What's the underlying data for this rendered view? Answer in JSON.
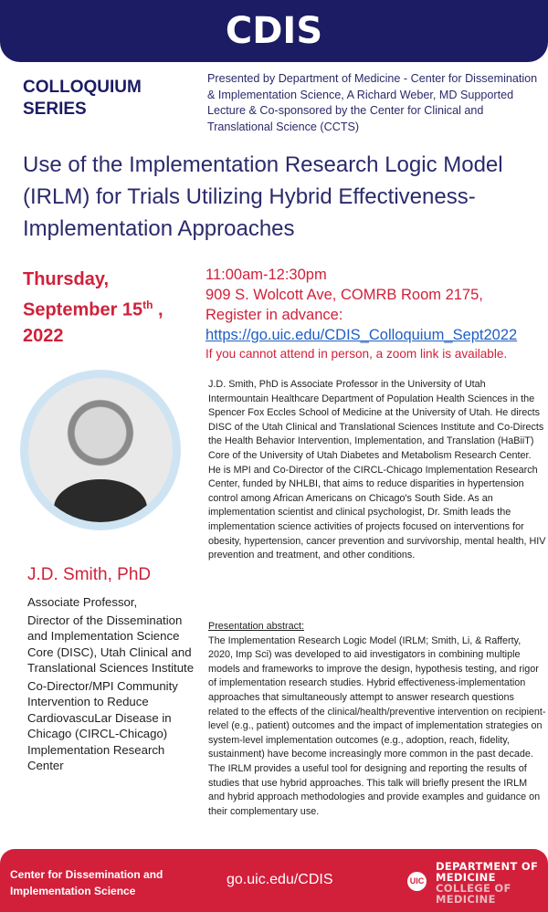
{
  "header": {
    "title": "CDIS"
  },
  "series": {
    "line1": "COLLOQUIUM",
    "line2": "SERIES"
  },
  "presented": "Presented by Department of Medicine - Center for Dissemination & Implementation Science, A Richard Weber, MD Supported Lecture & Co-sponsored by the Center for Clinical and Translational Science (CCTS)",
  "title": "Use of the Implementation Research Logic Model (IRLM) for Trials Utilizing Hybrid Effectiveness-Implementation Approaches",
  "date": {
    "line1": "Thursday,",
    "line2": "September 15",
    "sup": "th",
    "line2_end": " ,",
    "line3": "2022"
  },
  "info": {
    "time": "11:00am-12:30pm",
    "location": "909 S. Wolcott Ave, COMRB Room 2175,",
    "register": "Register in advance:",
    "link": "https://go.uic.edu/CDIS_Colloquium_Sept2022",
    "note": "If you cannot attend in person, a zoom link is available."
  },
  "speaker": {
    "name": "J.D. Smith, PhD",
    "roles": [
      "Associate Professor,",
      "Director of the Dissemination and Implementation Science Core (DISC), Utah Clinical and Translational Sciences Institute",
      "Co-Director/MPI Community Intervention to Reduce CardiovascuLar Disease in Chicago (CIRCL-Chicago) Implementation Research Center"
    ]
  },
  "bio": "J.D. Smith, PhD is Associate Professor in the University of Utah Intermountain Healthcare Department of Population Health Sciences in the Spencer Fox Eccles School of Medicine at the University of Utah. He directs DISC of the Utah Clinical and Translational Sciences Institute and Co-Directs the Health Behavior Intervention, Implementation, and Translation (HaBiiT) Core of the University of Utah Diabetes and Metabolism Research Center. He is MPI and Co-Director of the CIRCL-Chicago Implementation Research Center, funded by NHLBI, that aims to reduce disparities in hypertension control among African Americans on Chicago's South Side. As an implementation scientist and clinical psychologist, Dr. Smith leads the implementation science activities of projects focused on interventions for obesity, hypertension, cancer prevention and survivorship, mental health, HIV prevention and treatment, and other conditions.",
  "abstract": {
    "heading": "Presentation abstract:",
    "text": "The Implementation Research Logic Model (IRLM; Smith, Li, & Rafferty, 2020, Imp Sci) was developed to aid investigators in combining multiple models and frameworks to improve the design, hypothesis testing, and rigor of implementation research studies. Hybrid effectiveness-implementation approaches that simultaneously attempt to answer research questions related to the effects of the clinical/health/preventive intervention on recipient-level (e.g., patient) outcomes and the impact of implementation strategies on system-level implementation outcomes (e.g., adoption, reach, fidelity, sustainment) have become increasingly more common in the past decade. The IRLM provides a useful tool for designing and reporting the results of studies that use hybrid approaches. This talk will briefly present the IRLM and hybrid approach methodologies and provide examples and guidance on their complementary use."
  },
  "footer": {
    "center_line1": "Center for Dissemination and",
    "center_line2": "Implementation Science",
    "url": "go.uic.edu/CDIS",
    "logo": "UIC",
    "dept1": "DEPARTMENT OF",
    "dept2": "MEDICINE",
    "college1": "COLLEGE OF",
    "college2": "MEDICINE"
  },
  "colors": {
    "navy": "#1b1c63",
    "red": "#d0213a",
    "link": "#1f5fc4"
  }
}
